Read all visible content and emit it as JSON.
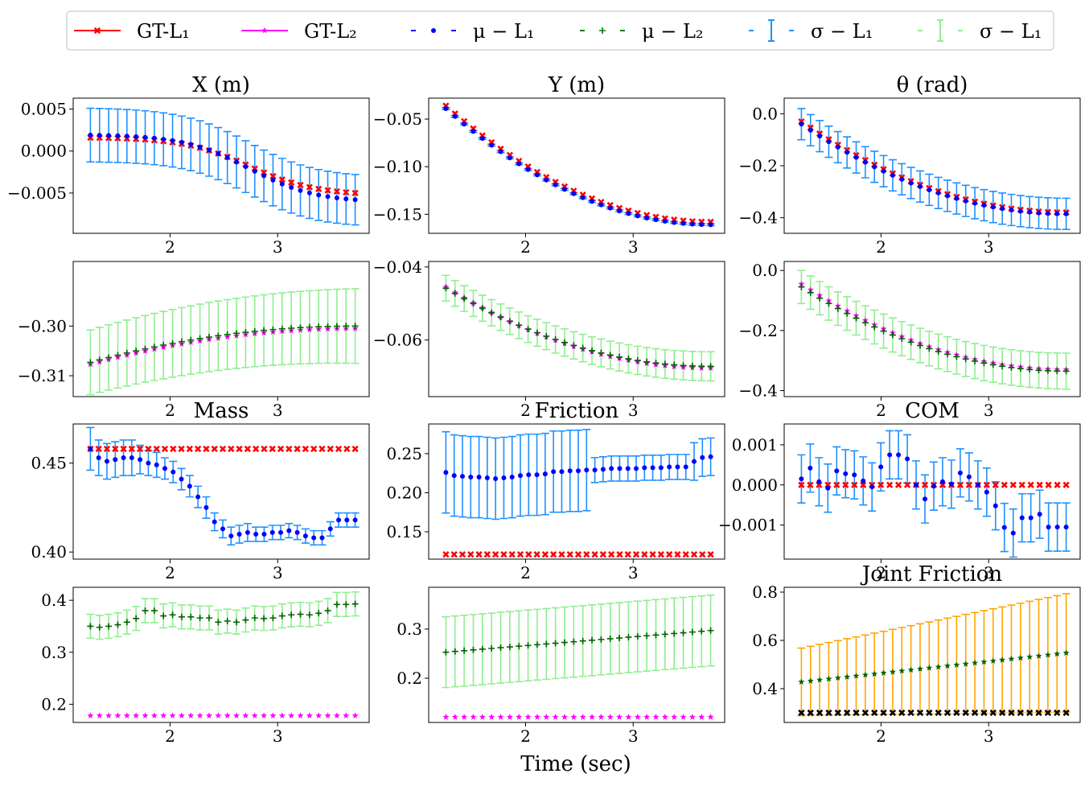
{
  "legend": {
    "items": [
      {
        "label": "GT-L₁",
        "color": "#ff0000",
        "style": "solid-x"
      },
      {
        "label": "GT-L₂",
        "color": "#ff00ff",
        "style": "solid-star"
      },
      {
        "label": "μ − L₁",
        "color": "#0000ff",
        "style": "dots"
      },
      {
        "label": "μ − L₂",
        "color": "#008000",
        "style": "plus"
      },
      {
        "label": "σ − L₁",
        "color": "#1e90ff",
        "style": "errbar"
      },
      {
        "label": "σ − L₁",
        "color": "#90ee90",
        "style": "errbar"
      }
    ]
  },
  "xlabel": "Time (sec)",
  "colors": {
    "gt1": "#ff0000",
    "gt2": "#ff00ff",
    "mu1": "#0000ff",
    "mu2": "#006400",
    "sd1": "#1e90ff",
    "sd2": "#90ee90",
    "jf": "#ffa500",
    "jgt": "#000000"
  },
  "chart_data": [
    {
      "type": "scatter",
      "title": "X (m)",
      "ylim": [
        -0.0098,
        0.0063
      ],
      "xlim": [
        1.1,
        3.85
      ],
      "xticks": [
        "2",
        "3"
      ],
      "xtickvals": [
        2,
        3
      ],
      "yticks": [
        "0.005",
        "0.000",
        "−0.005"
      ],
      "ytickvals": [
        0.005,
        0.0,
        -0.005
      ],
      "gt": {
        "from": 0.0016,
        "to": -0.005,
        "shape": "sigmoid",
        "color": "gt1",
        "marker": "x"
      },
      "mu": {
        "from": 0.0019,
        "to": -0.0058,
        "shape": "sigmoid",
        "color": "mu1",
        "marker": "dot"
      },
      "sd": {
        "from": 0.0032,
        "to": 0.003,
        "color": "sd1"
      }
    },
    {
      "type": "scatter",
      "title": "Y (m)",
      "ylim": [
        -0.17,
        -0.028
      ],
      "xlim": [
        1.1,
        3.85
      ],
      "xticks": [
        "2",
        "3"
      ],
      "xtickvals": [
        2,
        3
      ],
      "yticks": [
        "−0.05",
        "−0.10",
        "−0.15"
      ],
      "ytickvals": [
        -0.05,
        -0.1,
        -0.15
      ],
      "gt": {
        "from": -0.036,
        "to": -0.158,
        "shape": "ease",
        "color": "gt1",
        "marker": "x"
      },
      "mu": {
        "from": -0.039,
        "to": -0.161,
        "shape": "ease",
        "color": "mu1",
        "marker": "dot"
      },
      "sd": {
        "from": 0.001,
        "to": 0.001,
        "color": "sd1"
      }
    },
    {
      "type": "scatter",
      "title": "θ (rad)",
      "ylim": [
        -0.46,
        0.06
      ],
      "xlim": [
        1.1,
        3.85
      ],
      "xticks": [
        "2",
        "3"
      ],
      "xtickvals": [
        2,
        3
      ],
      "yticks": [
        "0.0",
        "−0.2",
        "−0.4"
      ],
      "ytickvals": [
        0.0,
        -0.2,
        -0.4
      ],
      "gt": {
        "from": -0.03,
        "to": -0.38,
        "shape": "ease",
        "color": "gt1",
        "marker": "x"
      },
      "mu": {
        "from": -0.04,
        "to": -0.385,
        "shape": "ease",
        "color": "mu1",
        "marker": "dot"
      },
      "sd": {
        "from": 0.06,
        "to": 0.06,
        "color": "sd1"
      }
    },
    {
      "type": "scatter",
      "title": "",
      "ylim": [
        -0.3142,
        -0.287
      ],
      "xlim": [
        1.1,
        3.85
      ],
      "xticks": [
        "2",
        "3"
      ],
      "xtickvals": [
        2,
        3
      ],
      "yticks": [
        "−0.30",
        "−0.31"
      ],
      "ytickvals": [
        -0.3,
        -0.31
      ],
      "gt": {
        "from": -0.3077,
        "to": -0.3005,
        "shape": "ease",
        "color": "gt2",
        "marker": "star"
      },
      "mu": {
        "from": -0.3073,
        "to": -0.3,
        "shape": "ease",
        "color": "mu2",
        "marker": "plus"
      },
      "sd": {
        "from": 0.0065,
        "to": 0.0075,
        "color": "sd2"
      }
    },
    {
      "type": "scatter",
      "title": "",
      "ylim": [
        -0.0755,
        -0.0385
      ],
      "xlim": [
        1.1,
        3.85
      ],
      "xticks": [
        "2",
        "3"
      ],
      "xtickvals": [
        2,
        3
      ],
      "yticks": [
        "−0.04",
        "−0.06"
      ],
      "ytickvals": [
        -0.04,
        -0.06
      ],
      "gt": {
        "from": -0.0455,
        "to": -0.0677,
        "shape": "ease",
        "color": "gt2",
        "marker": "star"
      },
      "mu": {
        "from": -0.0458,
        "to": -0.0672,
        "shape": "ease",
        "color": "mu2",
        "marker": "plus"
      },
      "sd": {
        "from": 0.0035,
        "to": 0.004,
        "color": "sd2"
      }
    },
    {
      "type": "scatter",
      "title": "",
      "ylim": [
        -0.42,
        0.03
      ],
      "xlim": [
        1.1,
        3.85
      ],
      "xticks": [
        "2",
        "3"
      ],
      "xtickvals": [
        2,
        3
      ],
      "yticks": [
        "0.0",
        "−0.2",
        "−0.4"
      ],
      "ytickvals": [
        0.0,
        -0.2,
        -0.4
      ],
      "gt": {
        "from": -0.045,
        "to": -0.33,
        "shape": "ease",
        "color": "gt2",
        "marker": "star"
      },
      "mu": {
        "from": -0.055,
        "to": -0.335,
        "shape": "ease",
        "color": "mu2",
        "marker": "plus"
      },
      "sd": {
        "from": 0.055,
        "to": 0.06,
        "color": "sd2"
      }
    },
    {
      "type": "scatter",
      "title": "Mass",
      "ylim": [
        0.396,
        0.472
      ],
      "xlim": [
        1.1,
        3.85
      ],
      "xticks": [
        "2",
        "3"
      ],
      "xtickvals": [
        2,
        3
      ],
      "yticks": [
        "0.45",
        "0.40"
      ],
      "ytickvals": [
        0.45,
        0.4
      ],
      "gt": {
        "values": [
          0.458
        ],
        "color": "gt1",
        "marker": "x"
      },
      "mu": {
        "values": [
          0.458,
          0.453,
          0.451,
          0.452,
          0.453,
          0.453,
          0.452,
          0.45,
          0.449,
          0.447,
          0.445,
          0.441,
          0.437,
          0.431,
          0.425,
          0.417,
          0.413,
          0.409,
          0.41,
          0.411,
          0.41,
          0.41,
          0.411,
          0.411,
          0.412,
          0.411,
          0.409,
          0.408,
          0.408,
          0.413,
          0.418,
          0.418,
          0.418
        ],
        "color": "mu1",
        "marker": "dot"
      },
      "sd": {
        "values": [
          0.012,
          0.01,
          0.01,
          0.01,
          0.01,
          0.01,
          0.008,
          0.007,
          0.007,
          0.006,
          0.006,
          0.006,
          0.006,
          0.006,
          0.006,
          0.005,
          0.005,
          0.005,
          0.005,
          0.005,
          0.004,
          0.004,
          0.004,
          0.004,
          0.004,
          0.004,
          0.004,
          0.004,
          0.004,
          0.004,
          0.004,
          0.004,
          0.004
        ],
        "color": "sd1"
      }
    },
    {
      "type": "scatter",
      "title": "Friction",
      "ylim": [
        0.115,
        0.288
      ],
      "xlim": [
        1.1,
        3.85
      ],
      "xticks": [
        "2",
        "3"
      ],
      "xtickvals": [
        2,
        3
      ],
      "yticks": [
        "0.25",
        "0.20",
        "0.15"
      ],
      "ytickvals": [
        0.25,
        0.2,
        0.15
      ],
      "gt": {
        "values": [
          0.121
        ],
        "color": "gt1",
        "marker": "x"
      },
      "mu": {
        "values": [
          0.226,
          0.222,
          0.221,
          0.22,
          0.22,
          0.219,
          0.218,
          0.219,
          0.22,
          0.222,
          0.223,
          0.223,
          0.224,
          0.227,
          0.227,
          0.228,
          0.228,
          0.229,
          0.229,
          0.23,
          0.231,
          0.231,
          0.231,
          0.231,
          0.232,
          0.232,
          0.232,
          0.233,
          0.233,
          0.233,
          0.24,
          0.245,
          0.246
        ],
        "color": "mu1",
        "marker": "dot"
      },
      "sd": {
        "values": [
          0.052,
          0.052,
          0.052,
          0.052,
          0.052,
          0.052,
          0.052,
          0.052,
          0.052,
          0.052,
          0.052,
          0.052,
          0.052,
          0.052,
          0.052,
          0.052,
          0.052,
          0.052,
          0.016,
          0.016,
          0.016,
          0.016,
          0.016,
          0.016,
          0.016,
          0.016,
          0.016,
          0.016,
          0.016,
          0.016,
          0.024,
          0.024,
          0.024
        ],
        "color": "sd1"
      }
    },
    {
      "type": "scatter",
      "title": "COM",
      "ylim": [
        -0.00185,
        0.00152
      ],
      "xlim": [
        1.1,
        3.85
      ],
      "xticks": [
        "2",
        "3"
      ],
      "xtickvals": [
        2,
        3
      ],
      "yticks": [
        "0.001",
        "0.000",
        "−0.001"
      ],
      "ytickvals": [
        0.001,
        0.0,
        -0.001
      ],
      "gt": {
        "values": [
          0.0
        ],
        "color": "gt1",
        "marker": "x"
      },
      "mu": {
        "values": [
          0.00015,
          0.00042,
          8e-05,
          -8e-05,
          0.00035,
          0.00028,
          0.00025,
          0.0001,
          -5e-05,
          0.00045,
          0.00075,
          0.00075,
          0.00065,
          0.0,
          -0.00035,
          -3e-05,
          8e-05,
          2e-05,
          0.0003,
          0.0002,
          0.0,
          -0.00018,
          -0.00052,
          -0.00106,
          -0.0012,
          -0.00082,
          -0.00082,
          -0.00073,
          -0.00105,
          -0.00105,
          -0.00105
        ],
        "color": "mu1",
        "marker": "dot"
      },
      "sd": {
        "values": [
          0.0006,
          0.0006,
          0.0006,
          0.0006,
          0.0006,
          0.0006,
          0.0006,
          0.0006,
          0.0006,
          0.0006,
          0.0006,
          0.0006,
          0.0006,
          0.0006,
          0.0006,
          0.0006,
          0.0006,
          0.0006,
          0.0006,
          0.0006,
          0.0006,
          0.0006,
          0.0006,
          0.0006,
          0.0006,
          0.0006,
          0.0006,
          0.0006,
          0.0006,
          0.0006,
          0.0006
        ],
        "color": "sd1"
      }
    },
    {
      "type": "scatter",
      "title": "",
      "ylim": [
        0.165,
        0.425
      ],
      "xlim": [
        1.1,
        3.85
      ],
      "xticks": [
        "2",
        "3"
      ],
      "xtickvals": [
        2,
        3
      ],
      "yticks": [
        "0.4",
        "0.3",
        "0.2"
      ],
      "ytickvals": [
        0.4,
        0.3,
        0.2
      ],
      "gt": {
        "values": [
          0.178
        ],
        "color": "gt2",
        "marker": "star"
      },
      "mu": {
        "values": [
          0.35,
          0.348,
          0.35,
          0.353,
          0.358,
          0.365,
          0.38,
          0.38,
          0.37,
          0.372,
          0.368,
          0.368,
          0.366,
          0.366,
          0.358,
          0.36,
          0.358,
          0.362,
          0.366,
          0.365,
          0.366,
          0.37,
          0.372,
          0.373,
          0.372,
          0.375,
          0.38,
          0.392,
          0.392,
          0.393
        ],
        "color": "mu2",
        "marker": "plus"
      },
      "sd": {
        "values": [
          0.023,
          0.023,
          0.023,
          0.023,
          0.023,
          0.023,
          0.023,
          0.023,
          0.023,
          0.023,
          0.023,
          0.023,
          0.023,
          0.023,
          0.023,
          0.023,
          0.023,
          0.023,
          0.023,
          0.023,
          0.023,
          0.023,
          0.023,
          0.023,
          0.023,
          0.023,
          0.023,
          0.023,
          0.023,
          0.023
        ],
        "color": "sd2"
      }
    },
    {
      "type": "scatter",
      "title": "",
      "ylim": [
        0.11,
        0.385
      ],
      "xlim": [
        1.1,
        3.85
      ],
      "xticks": [
        "2",
        "3"
      ],
      "xtickvals": [
        2,
        3
      ],
      "yticks": [
        "0.3",
        "0.2"
      ],
      "ytickvals": [
        0.3,
        0.2
      ],
      "gt": {
        "values": [
          0.121
        ],
        "color": "gt2",
        "marker": "star"
      },
      "mu": {
        "from": 0.253,
        "to": 0.297,
        "shape": "linear",
        "color": "mu2",
        "marker": "plus"
      },
      "sd": {
        "from": 0.072,
        "to": 0.072,
        "color": "sd2"
      }
    },
    {
      "type": "scatter",
      "title": "Joint Friction",
      "ylim": [
        0.26,
        0.82
      ],
      "xlim": [
        1.1,
        3.85
      ],
      "xticks": [
        "2",
        "3"
      ],
      "xtickvals": [
        2,
        3
      ],
      "yticks": [
        "0.8",
        "0.6",
        "0.4"
      ],
      "ytickvals": [
        0.8,
        0.6,
        0.4
      ],
      "gt": {
        "values": [
          0.3
        ],
        "color": "jgt",
        "marker": "x"
      },
      "mu": {
        "from": 0.428,
        "to": 0.548,
        "shape": "linear",
        "color": "mu2",
        "marker": "star"
      },
      "sd": {
        "from": 0.14,
        "to": 0.245,
        "color": "jf"
      }
    }
  ]
}
